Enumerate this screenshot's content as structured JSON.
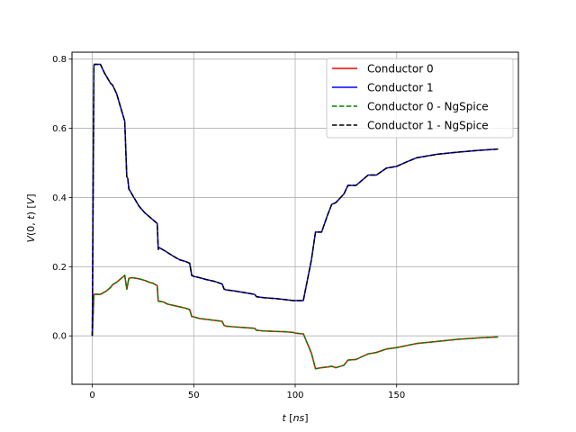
{
  "chart_data": {
    "type": "line",
    "title": "",
    "xlabel": "t [ns]",
    "ylabel": "V(0, t) [V]",
    "xlim": [
      -10,
      210
    ],
    "ylim": [
      -0.14,
      0.82
    ],
    "xticks": [
      0,
      50,
      100,
      150
    ],
    "xtick_labels": [
      "0",
      "50",
      "100",
      "150"
    ],
    "yticks": [
      0.0,
      0.2,
      0.4,
      0.6,
      0.8
    ],
    "ytick_labels": [
      "0.0",
      "0.2",
      "0.4",
      "0.6",
      "0.8"
    ],
    "grid": true,
    "legend_position": "top-right",
    "series": [
      {
        "name": "Conductor 0",
        "color": "#ff0000",
        "dash": "solid",
        "x": [
          0,
          0.8,
          1,
          4,
          7,
          9,
          10,
          12,
          14,
          16,
          17,
          18,
          19,
          20,
          23,
          26,
          28,
          30,
          32,
          32.5,
          33,
          35,
          37,
          40,
          43,
          46,
          48,
          49,
          50,
          53,
          56,
          60,
          64,
          65,
          66,
          70,
          75,
          80,
          81,
          85,
          90,
          95,
          99,
          100,
          103,
          104,
          108,
          110,
          113,
          116,
          118,
          120,
          124,
          126,
          130,
          133,
          136,
          140,
          145,
          150,
          155,
          160,
          170,
          180,
          190,
          200
        ],
        "y": [
          0.0,
          0.12,
          0.12,
          0.12,
          0.13,
          0.14,
          0.148,
          0.155,
          0.165,
          0.175,
          0.135,
          0.166,
          0.168,
          0.168,
          0.165,
          0.16,
          0.155,
          0.152,
          0.145,
          0.1,
          0.1,
          0.098,
          0.092,
          0.088,
          0.084,
          0.08,
          0.076,
          0.056,
          0.055,
          0.05,
          0.048,
          0.045,
          0.042,
          0.03,
          0.028,
          0.026,
          0.024,
          0.022,
          0.016,
          0.014,
          0.013,
          0.012,
          0.01,
          0.008,
          0.006,
          0.006,
          -0.05,
          -0.095,
          -0.092,
          -0.09,
          -0.088,
          -0.092,
          -0.085,
          -0.07,
          -0.068,
          -0.06,
          -0.052,
          -0.048,
          -0.038,
          -0.034,
          -0.028,
          -0.022,
          -0.016,
          -0.01,
          -0.006,
          -0.003
        ]
      },
      {
        "name": "Conductor 1",
        "color": "#0000ff",
        "dash": "solid",
        "x": [
          0,
          0.8,
          1,
          4,
          6,
          9,
          10,
          12,
          14,
          16,
          17,
          17.5,
          18,
          20,
          23,
          26,
          28,
          30,
          32,
          32.5,
          33,
          36,
          40,
          43,
          46,
          48,
          49,
          50,
          53,
          56,
          60,
          64,
          65,
          66,
          70,
          75,
          80,
          81,
          85,
          90,
          95,
          99,
          100,
          104,
          108,
          110,
          113,
          116,
          118,
          120,
          124,
          126,
          130,
          133,
          136,
          140,
          145,
          150,
          155,
          160,
          170,
          180,
          190,
          200
        ],
        "y": [
          0.0,
          0.78,
          0.785,
          0.785,
          0.76,
          0.73,
          0.725,
          0.7,
          0.66,
          0.62,
          0.46,
          0.455,
          0.425,
          0.405,
          0.375,
          0.355,
          0.345,
          0.335,
          0.325,
          0.25,
          0.255,
          0.245,
          0.23,
          0.22,
          0.215,
          0.21,
          0.175,
          0.172,
          0.168,
          0.163,
          0.158,
          0.15,
          0.135,
          0.133,
          0.13,
          0.125,
          0.12,
          0.113,
          0.11,
          0.108,
          0.105,
          0.102,
          0.102,
          0.102,
          0.22,
          0.3,
          0.3,
          0.35,
          0.38,
          0.385,
          0.41,
          0.435,
          0.435,
          0.45,
          0.465,
          0.465,
          0.485,
          0.49,
          0.503,
          0.515,
          0.525,
          0.531,
          0.536,
          0.54
        ]
      },
      {
        "name": "Conductor 0 - NgSpice",
        "color": "#008000",
        "dash": "dashed",
        "x": [
          0,
          0.8,
          1,
          4,
          7,
          9,
          10,
          12,
          14,
          16,
          17,
          18,
          19,
          20,
          23,
          26,
          28,
          30,
          32,
          32.5,
          33,
          35,
          37,
          40,
          43,
          46,
          48,
          49,
          50,
          53,
          56,
          60,
          64,
          65,
          66,
          70,
          75,
          80,
          81,
          85,
          90,
          95,
          99,
          100,
          103,
          104,
          108,
          110,
          113,
          116,
          118,
          120,
          124,
          126,
          130,
          133,
          136,
          140,
          145,
          150,
          155,
          160,
          170,
          180,
          190,
          200
        ],
        "y": [
          0.0,
          0.12,
          0.12,
          0.12,
          0.13,
          0.14,
          0.148,
          0.155,
          0.165,
          0.175,
          0.135,
          0.166,
          0.168,
          0.168,
          0.165,
          0.16,
          0.155,
          0.152,
          0.145,
          0.1,
          0.1,
          0.098,
          0.092,
          0.088,
          0.084,
          0.08,
          0.076,
          0.056,
          0.055,
          0.05,
          0.048,
          0.045,
          0.042,
          0.03,
          0.028,
          0.026,
          0.024,
          0.022,
          0.016,
          0.014,
          0.013,
          0.012,
          0.01,
          0.008,
          0.006,
          0.006,
          -0.05,
          -0.095,
          -0.092,
          -0.09,
          -0.088,
          -0.092,
          -0.085,
          -0.07,
          -0.068,
          -0.06,
          -0.052,
          -0.048,
          -0.038,
          -0.034,
          -0.028,
          -0.022,
          -0.016,
          -0.01,
          -0.006,
          -0.003
        ]
      },
      {
        "name": "Conductor 1 - NgSpice",
        "color": "#000000",
        "dash": "dashed",
        "x": [
          0,
          0.8,
          1,
          4,
          6,
          9,
          10,
          12,
          14,
          16,
          17,
          17.5,
          18,
          20,
          23,
          26,
          28,
          30,
          32,
          32.5,
          33,
          36,
          40,
          43,
          46,
          48,
          49,
          50,
          53,
          56,
          60,
          64,
          65,
          66,
          70,
          75,
          80,
          81,
          85,
          90,
          95,
          99,
          100,
          104,
          108,
          110,
          113,
          116,
          118,
          120,
          124,
          126,
          130,
          133,
          136,
          140,
          145,
          150,
          155,
          160,
          170,
          180,
          190,
          200
        ],
        "y": [
          0.0,
          0.78,
          0.785,
          0.785,
          0.76,
          0.73,
          0.725,
          0.7,
          0.66,
          0.62,
          0.46,
          0.455,
          0.425,
          0.405,
          0.375,
          0.355,
          0.345,
          0.335,
          0.325,
          0.25,
          0.255,
          0.245,
          0.23,
          0.22,
          0.215,
          0.21,
          0.175,
          0.172,
          0.168,
          0.163,
          0.158,
          0.15,
          0.135,
          0.133,
          0.13,
          0.125,
          0.12,
          0.113,
          0.11,
          0.108,
          0.105,
          0.102,
          0.102,
          0.102,
          0.22,
          0.3,
          0.3,
          0.35,
          0.38,
          0.385,
          0.41,
          0.435,
          0.435,
          0.45,
          0.465,
          0.465,
          0.485,
          0.49,
          0.503,
          0.515,
          0.525,
          0.531,
          0.536,
          0.54
        ]
      }
    ]
  }
}
